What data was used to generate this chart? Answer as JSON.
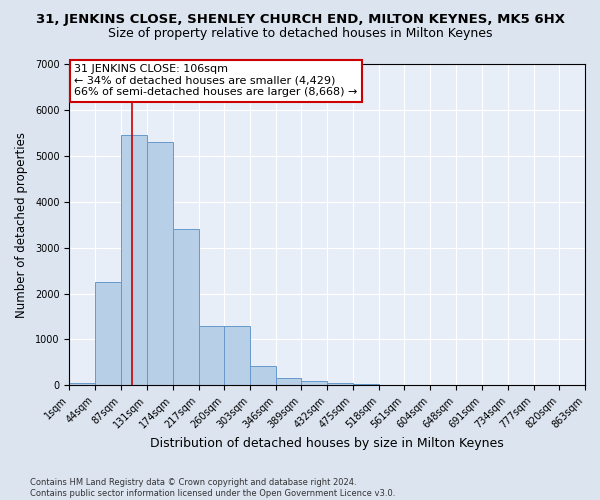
{
  "title": "31, JENKINS CLOSE, SHENLEY CHURCH END, MILTON KEYNES, MK5 6HX",
  "subtitle": "Size of property relative to detached houses in Milton Keynes",
  "xlabel": "Distribution of detached houses by size in Milton Keynes",
  "ylabel": "Number of detached properties",
  "footer_line1": "Contains HM Land Registry data © Crown copyright and database right 2024.",
  "footer_line2": "Contains public sector information licensed under the Open Government Licence v3.0.",
  "annotation_line1": "31 JENKINS CLOSE: 106sqm",
  "annotation_line2": "← 34% of detached houses are smaller (4,429)",
  "annotation_line3": "66% of semi-detached houses are larger (8,668) →",
  "bar_edges": [
    1,
    44,
    87,
    131,
    174,
    217,
    260,
    303,
    346,
    389,
    432,
    475,
    518,
    561,
    604,
    648,
    691,
    734,
    777,
    820,
    863
  ],
  "bar_heights": [
    55,
    2250,
    5450,
    5300,
    3400,
    1300,
    1300,
    420,
    160,
    100,
    50,
    30,
    15,
    10,
    8,
    6,
    4,
    3,
    2,
    1
  ],
  "bar_color": "#b8cfe8",
  "bar_edge_color": "#6699cc",
  "red_line_x": 106,
  "ylim": [
    0,
    7000
  ],
  "xlim": [
    1,
    863
  ],
  "background_color": "#dce4f0",
  "plot_background_color": "#e8eef8",
  "grid_color": "#ffffff",
  "title_fontsize": 9.5,
  "subtitle_fontsize": 9,
  "annotation_fontsize": 8,
  "tick_label_fontsize": 7,
  "xlabel_fontsize": 9,
  "ylabel_fontsize": 8.5
}
